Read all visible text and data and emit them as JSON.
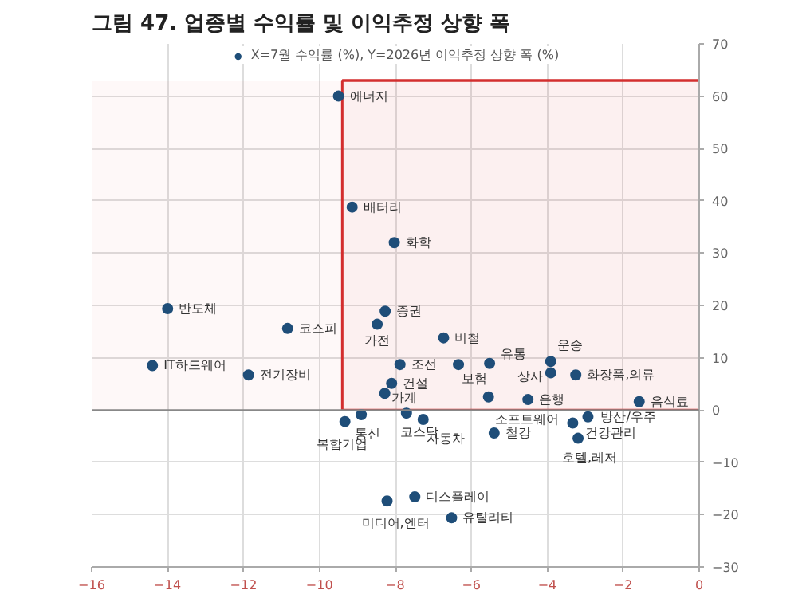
{
  "chart_data": {
    "type": "scatter",
    "title": "그림 47. 업종별 수익률 및 이익추정 상향 폭",
    "x": [
      -9.5,
      -9.14,
      -8.03,
      -14.0,
      -10.84,
      -8.27,
      -8.48,
      -6.73,
      -14.4,
      -11.87,
      -7.88,
      -6.34,
      -8.1,
      -8.28,
      -5.52,
      -3.91,
      -3.91,
      -3.25,
      -4.51,
      -5.55,
      -1.58,
      -5.4,
      -8.9,
      -9.33,
      -7.71,
      -7.27,
      -7.49,
      -8.22,
      -6.52,
      -2.93,
      -3.33,
      -3.19
    ],
    "series": [
      {
        "name": "X=7월 수익률 (%), Y=2026년 이익추정 상향 폭 (%)",
        "color": "#1f4e79",
        "values": [
          60,
          38.8,
          32,
          19.4,
          15.6,
          18.9,
          16.4,
          13.8,
          8.5,
          6.7,
          8.7,
          8.7,
          5.1,
          3.2,
          8.9,
          9.3,
          7.1,
          6.7,
          2.0,
          2.5,
          1.6,
          -4.4,
          -0.9,
          -2.2,
          -0.6,
          -1.8,
          -16.6,
          -17.4,
          -20.6,
          -1.3,
          -2.5,
          -5.4
        ]
      }
    ],
    "annotations": [
      {
        "text": "에너지",
        "x": -9.5,
        "y": 60
      },
      {
        "text": "배터리",
        "x": -9.14,
        "y": 38.8
      },
      {
        "text": "화학",
        "x": -8.03,
        "y": 32
      },
      {
        "text": "반도체",
        "x": -14.0,
        "y": 19.4
      },
      {
        "text": "코스피",
        "x": -10.84,
        "y": 15.6
      },
      {
        "text": "증권",
        "x": -8.27,
        "y": 18.9
      },
      {
        "text": "가전",
        "x": -8.48,
        "y": 16.4
      },
      {
        "text": "비철",
        "x": -6.73,
        "y": 13.8
      },
      {
        "text": "IT하드웨어",
        "x": -14.4,
        "y": 8.5
      },
      {
        "text": "전기장비",
        "x": -11.87,
        "y": 6.7
      },
      {
        "text": "조선",
        "x": -7.88,
        "y": 8.7
      },
      {
        "text": "보험",
        "x": -6.34,
        "y": 8.7
      },
      {
        "text": "건설",
        "x": -8.1,
        "y": 5.1
      },
      {
        "text": "가계",
        "x": -8.28,
        "y": 3.2
      },
      {
        "text": "유통",
        "x": -5.52,
        "y": 8.9
      },
      {
        "text": "운송",
        "x": -3.91,
        "y": 9.3
      },
      {
        "text": "상사",
        "x": -3.91,
        "y": 7.1
      },
      {
        "text": "화장품,의류",
        "x": -3.25,
        "y": 6.7
      },
      {
        "text": "은행",
        "x": -4.51,
        "y": 2.0
      },
      {
        "text": "소프트웨어",
        "x": -5.55,
        "y": 2.5
      },
      {
        "text": "음식료",
        "x": -1.58,
        "y": 1.6
      },
      {
        "text": "철강",
        "x": -5.4,
        "y": -4.4
      },
      {
        "text": "통신",
        "x": -8.9,
        "y": -0.9
      },
      {
        "text": "복합기업",
        "x": -9.33,
        "y": -2.2
      },
      {
        "text": "코스닥",
        "x": -7.71,
        "y": -0.6
      },
      {
        "text": "자동차",
        "x": -7.27,
        "y": -1.8
      },
      {
        "text": "디스플레이",
        "x": -7.49,
        "y": -16.6
      },
      {
        "text": "미디어,엔터",
        "x": -8.22,
        "y": -17.4
      },
      {
        "text": "유틸리티",
        "x": -6.52,
        "y": -20.6
      },
      {
        "text": "방산/우주",
        "x": -2.93,
        "y": -1.3
      },
      {
        "text": "건강관리",
        "x": -3.33,
        "y": -2.5
      },
      {
        "text": "호텔,레저",
        "x": -3.19,
        "y": -5.4
      }
    ],
    "bands": [
      {
        "axis": "x",
        "from": -9.4,
        "to": 0,
        "color": "#d32f2f"
      },
      {
        "axis": "y",
        "from": 0,
        "to": 63,
        "color": "#d32f2f"
      }
    ],
    "xlim": [
      -16,
      0
    ],
    "xticks": [
      -16,
      -14,
      -12,
      -10,
      -8,
      -6,
      -4,
      -2,
      0
    ],
    "ylim": [
      -30,
      70
    ],
    "yticks": [
      -30,
      -20,
      -10,
      0,
      10,
      20,
      30,
      40,
      50,
      60,
      70
    ],
    "grid": true,
    "legend": "top",
    "marker": "circle"
  }
}
